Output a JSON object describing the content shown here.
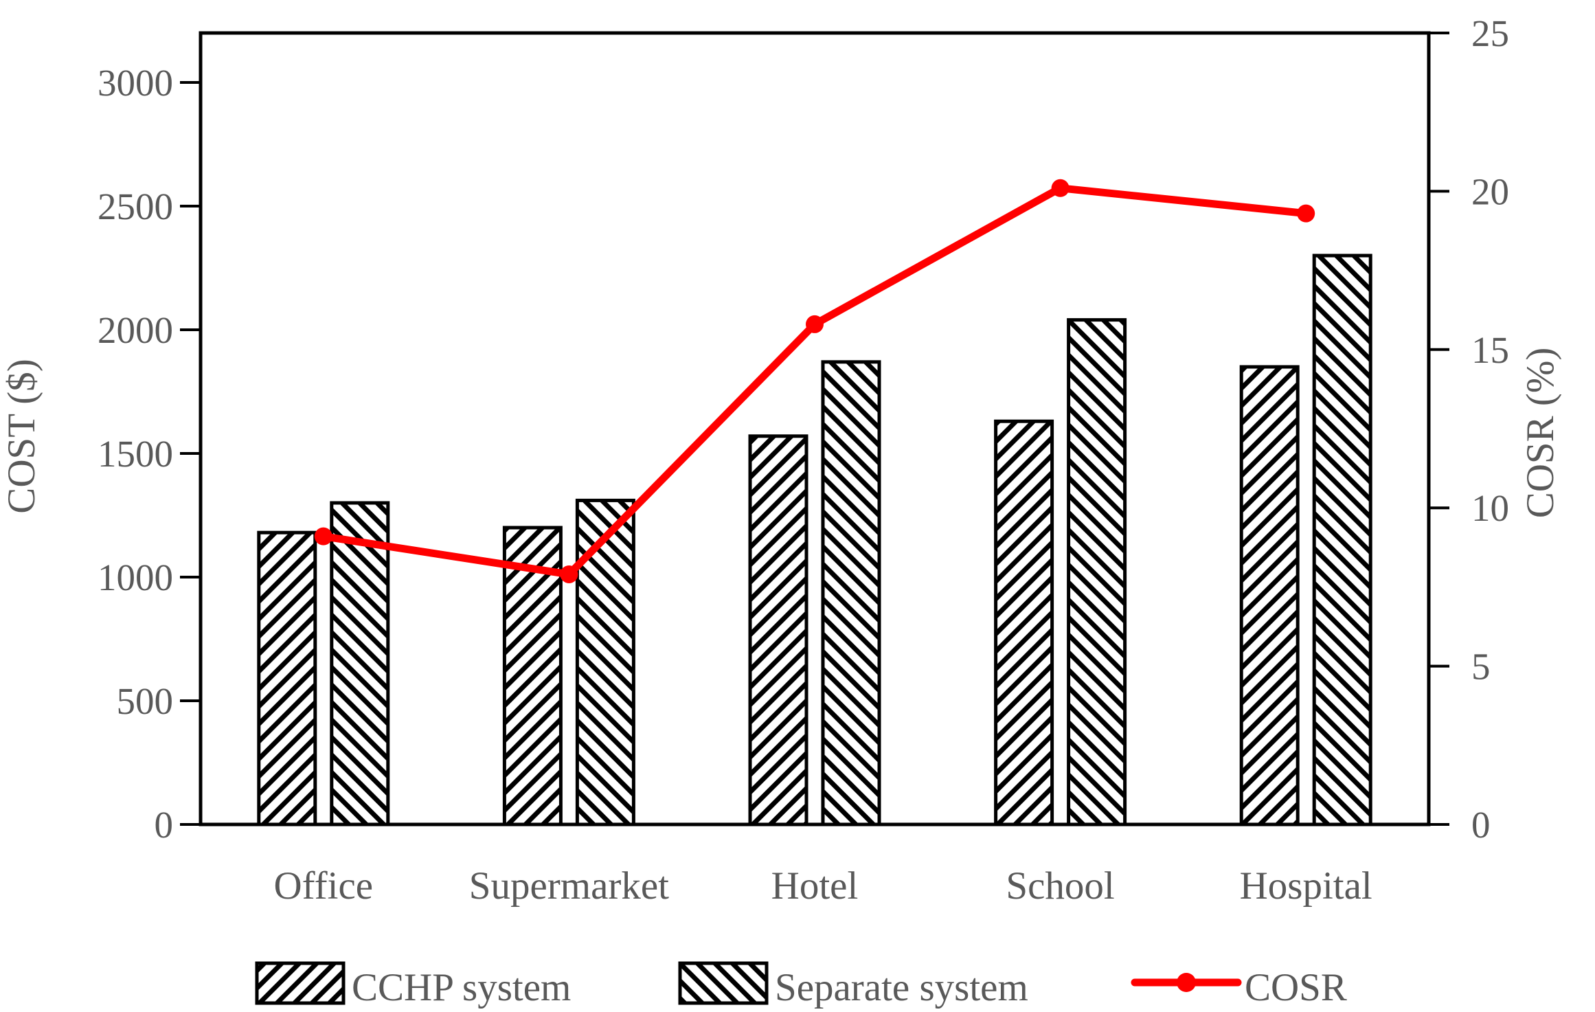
{
  "chart_data": {
    "type": "bar",
    "subtype": "bar-line-combo",
    "title": "",
    "categories": [
      "Office",
      "Supermarket",
      "Hotel",
      "School",
      "Hospital"
    ],
    "bar_series": [
      {
        "name": "CCHP system",
        "hatch": "forward-diagonal",
        "values": [
          1180,
          1200,
          1570,
          1630,
          1850
        ]
      },
      {
        "name": "Separate system",
        "hatch": "backward-diagonal",
        "values": [
          1300,
          1310,
          1870,
          2040,
          2300
        ]
      }
    ],
    "line_series": {
      "name": "COSR",
      "axis": "right",
      "values": [
        9.1,
        7.9,
        15.8,
        20.1,
        19.3
      ]
    },
    "left_axis": {
      "title": "COST ($)",
      "ticks": [
        0,
        500,
        1000,
        1500,
        2000,
        2500,
        3000
      ],
      "range": [
        0,
        3200
      ]
    },
    "right_axis": {
      "title": "COSR (%)",
      "ticks": [
        0,
        5,
        10,
        15,
        20,
        25
      ],
      "range": [
        0,
        25
      ]
    },
    "legend_position": "bottom",
    "grid": false
  },
  "style": {
    "background": "#ffffff",
    "text_color": "#595959",
    "bar_fill": "#ffffff",
    "bar_stroke": "#000000",
    "frame_color": "#000000",
    "line_color": "#ff0000"
  }
}
